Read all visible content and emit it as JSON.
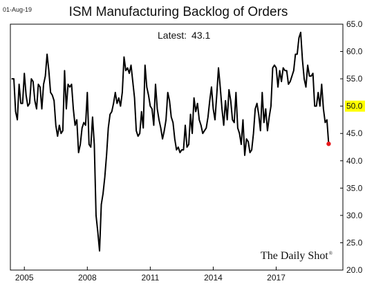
{
  "header": {
    "date": "01-Aug-19",
    "title": "ISM Manufacturing Backlog of Orders",
    "latest_label": "Latest:",
    "latest_value": "43.1"
  },
  "brand": {
    "text": "The Daily Shot",
    "mark": "®"
  },
  "colors": {
    "line": "#000000",
    "highlight": "#ffff00",
    "marker": "#e8191c",
    "frame": "#000000"
  },
  "chart_data": {
    "type": "line",
    "title": "ISM Manufacturing Backlog of Orders",
    "annotation": "Latest: 43.1",
    "xlabel": "",
    "ylabel": "",
    "ylim": [
      20,
      65
    ],
    "yticks": [
      "20.0",
      "25.0",
      "30.0",
      "35.0",
      "40.0",
      "45.0",
      "50.0",
      "55.0",
      "60.0",
      "65.0"
    ],
    "xticks": [
      "2005",
      "2008",
      "2011",
      "2014",
      "2017"
    ],
    "highlighted_tick": "50.0",
    "grid": false,
    "last_point_marker": true,
    "x_start": "2004-06",
    "y": [
      55,
      55,
      49,
      47.5,
      54,
      50.5,
      50.5,
      56,
      52,
      50,
      50.5,
      55,
      54.5,
      51,
      49.5,
      54,
      53.5,
      49.5,
      54,
      55.5,
      59.5,
      56.5,
      52.5,
      52,
      51,
      46.5,
      44.5,
      46.5,
      45,
      45.5,
      56.5,
      49.5,
      54,
      53.5,
      54,
      49.5,
      46.5,
      47.5,
      41.5,
      43,
      46,
      47,
      46.5,
      52.5,
      43,
      42.5,
      48,
      43,
      30,
      27,
      23.5,
      32,
      34,
      37,
      41,
      46,
      48.5,
      49,
      50.5,
      52.5,
      50.5,
      51.5,
      50,
      52.5,
      59,
      56.5,
      57,
      56,
      57.5,
      54.5,
      51.5,
      45.5,
      44.5,
      45,
      49,
      46,
      57.5,
      53.5,
      52,
      50,
      49.5,
      46.5,
      54,
      49.5,
      47.5,
      46,
      44,
      45.5,
      47.5,
      52.5,
      51,
      48,
      47,
      44,
      42,
      42.5,
      41.5,
      42,
      42,
      46.5,
      42.5,
      43,
      48.5,
      45,
      51.5,
      49,
      50.5,
      47.5,
      46.5,
      45,
      45.5,
      46,
      48,
      51,
      53.5,
      49.5,
      47.5,
      52,
      57,
      53.5,
      49.5,
      46.5,
      51,
      47.5,
      53,
      51,
      47.5,
      47,
      52.5,
      46,
      45,
      43,
      47.5,
      41,
      44,
      43.5,
      41.5,
      42,
      45,
      49.5,
      50.5,
      48.5,
      45.5,
      52.5,
      47,
      49.5,
      45.5,
      48,
      50,
      57,
      57.5,
      57,
      53.5,
      56.5,
      54.5,
      57,
      56.5,
      56.5,
      54,
      54.5,
      55.5,
      56.5,
      59.5,
      59.5,
      62.5,
      63.5,
      58.5,
      55,
      53.5,
      57.5,
      55.5,
      55.5,
      56,
      50,
      50,
      52.5,
      50,
      54,
      49.5,
      47,
      47.5,
      43.1
    ]
  }
}
